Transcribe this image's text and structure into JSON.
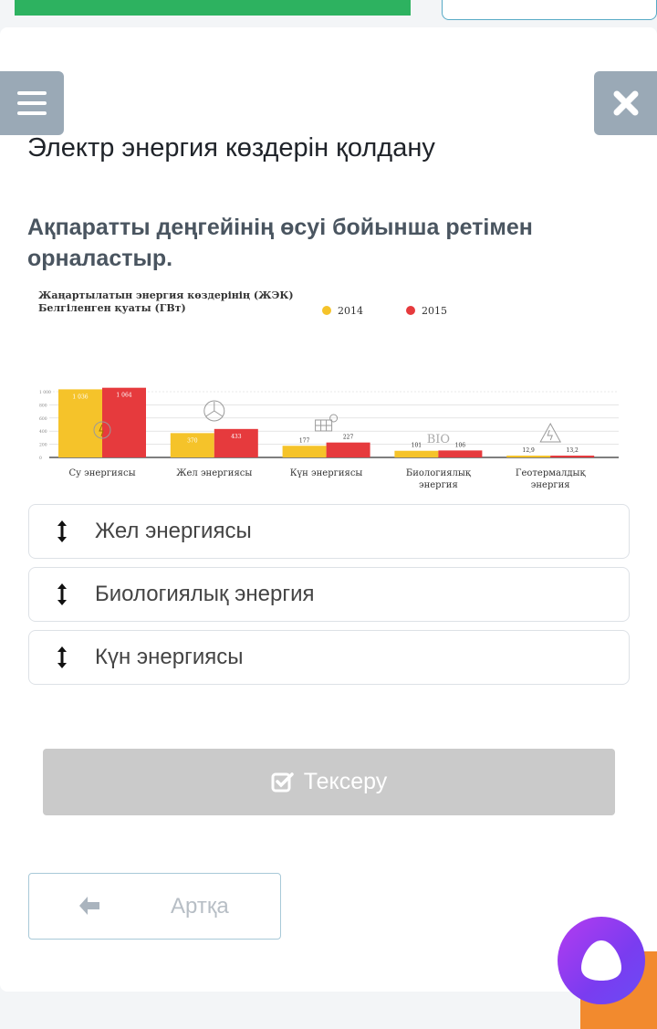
{
  "page": {
    "title": "Электр энергия көздерін қолдану",
    "question": "Ақпаратты деңгейінің өсуі бойынша ретімен орналастыр."
  },
  "chart_data": {
    "type": "bar",
    "title": "Жаңартылатын энергия көздерінің (ЖЭК)",
    "subtitle": "Белгіленген қуаты (ГВт)",
    "categories": [
      "Су энергиясы",
      "Жел энергиясы",
      "Күн энергиясы",
      "Биологиялық энергия",
      "Геотермалдық энергия"
    ],
    "category_lines": [
      [
        "Су энергиясы"
      ],
      [
        "Жел энергиясы"
      ],
      [
        "Күн энергиясы"
      ],
      [
        "Биологиялық",
        "энергия"
      ],
      [
        "Геотермалдық",
        "энергия"
      ]
    ],
    "series": [
      {
        "name": "2014",
        "color": "#f5c32a",
        "values": [
          1036,
          370,
          177,
          101,
          12.9
        ],
        "labels": [
          "1 036",
          "370",
          "177",
          "101",
          "12,9"
        ]
      },
      {
        "name": "2015",
        "color": "#e63a3d",
        "values": [
          1064,
          433,
          227,
          106,
          13.2
        ],
        "labels": [
          "1 064",
          "433",
          "227",
          "106",
          "13,2"
        ]
      }
    ],
    "ylim": [
      0,
      1000
    ],
    "yticks": [
      "0",
      "200",
      "400",
      "600",
      "800",
      "1 000"
    ],
    "legend": "top-right",
    "icons": [
      "hydro-icon",
      "wind-turbine-icon",
      "solar-panel-icon",
      "bio-icon",
      "geothermal-icon"
    ]
  },
  "order_items": [
    {
      "label": "Жел энергиясы"
    },
    {
      "label": "Биологиялық энергия"
    },
    {
      "label": "Күн энергиясы"
    }
  ],
  "buttons": {
    "check": "Тексеру",
    "back": "Артқа"
  }
}
